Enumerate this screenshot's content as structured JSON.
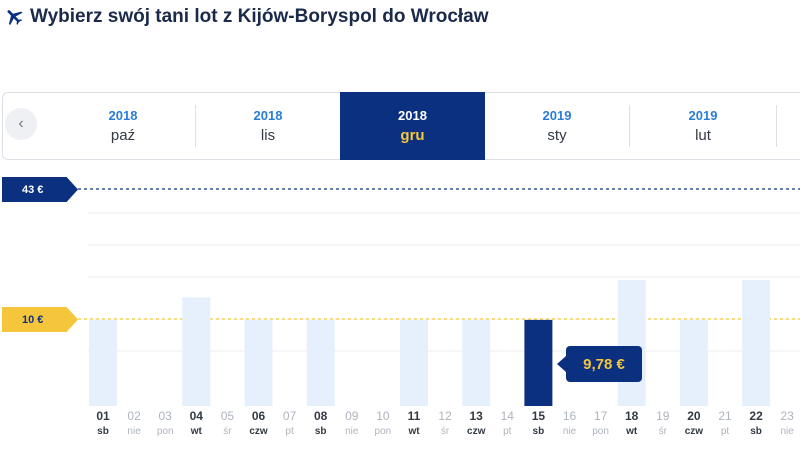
{
  "header": {
    "title": "Wybierz swój tani lot z Kijów-Boryspol do Wrocław",
    "icon": "plane-icon"
  },
  "months": [
    {
      "year": "2018",
      "name": "paź",
      "active": false
    },
    {
      "year": "2018",
      "name": "lis",
      "active": false
    },
    {
      "year": "2018",
      "name": "gru",
      "active": true
    },
    {
      "year": "2019",
      "name": "sty",
      "active": false
    },
    {
      "year": "2019",
      "name": "lut",
      "active": false
    }
  ],
  "price_flags": {
    "max_label": "43 €",
    "low_label": "10 €"
  },
  "tooltip": {
    "price": "9,78 €"
  },
  "colors": {
    "navy": "#0b3080",
    "yellow": "#f5c63b",
    "light_bar": "#e6f0fd",
    "link_blue": "#2a7dd5"
  },
  "chart_data": {
    "type": "bar",
    "categories": [
      "01",
      "02",
      "03",
      "04",
      "05",
      "06",
      "07",
      "08",
      "09",
      "10",
      "11",
      "12",
      "13",
      "14",
      "15",
      "16",
      "17",
      "18",
      "19",
      "20",
      "21",
      "22",
      "23"
    ],
    "weekdays": [
      "sb",
      "nie",
      "pon",
      "wt",
      "śr",
      "czw",
      "pt",
      "sb",
      "nie",
      "pon",
      "wt",
      "śr",
      "czw",
      "pt",
      "sb",
      "nie",
      "pon",
      "wt",
      "śr",
      "czw",
      "pt",
      "sb",
      "nie"
    ],
    "available": [
      true,
      false,
      false,
      true,
      false,
      true,
      false,
      true,
      false,
      false,
      true,
      false,
      true,
      false,
      true,
      false,
      false,
      true,
      false,
      true,
      false,
      true,
      false
    ],
    "values": [
      9.78,
      null,
      null,
      15.5,
      null,
      9.78,
      null,
      9.78,
      null,
      null,
      9.78,
      null,
      9.78,
      null,
      9.78,
      null,
      null,
      19.9,
      null,
      9.78,
      null,
      19.9,
      null
    ],
    "selected_index": 14,
    "reference_lines": [
      43,
      10
    ],
    "ylim": [
      0,
      43
    ],
    "grid": true
  }
}
